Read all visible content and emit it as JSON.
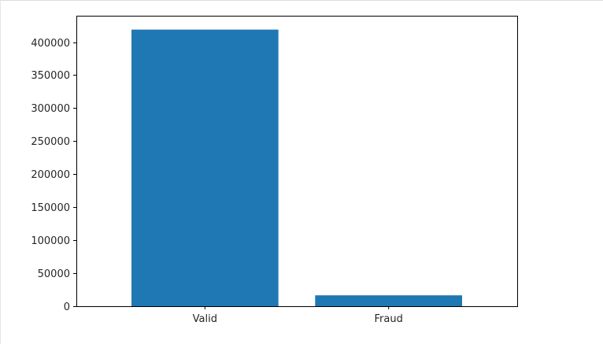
{
  "chart_data": {
    "type": "bar",
    "title": "",
    "xlabel": "",
    "ylabel": "",
    "categories": [
      "Valid",
      "Fraud"
    ],
    "values": [
      419000,
      16500
    ],
    "ylim": [
      0,
      440000
    ],
    "yticks": [
      0,
      50000,
      100000,
      150000,
      200000,
      250000,
      300000,
      350000,
      400000
    ],
    "bar_color": "#1f77b4",
    "grid": false,
    "legend": "none"
  }
}
